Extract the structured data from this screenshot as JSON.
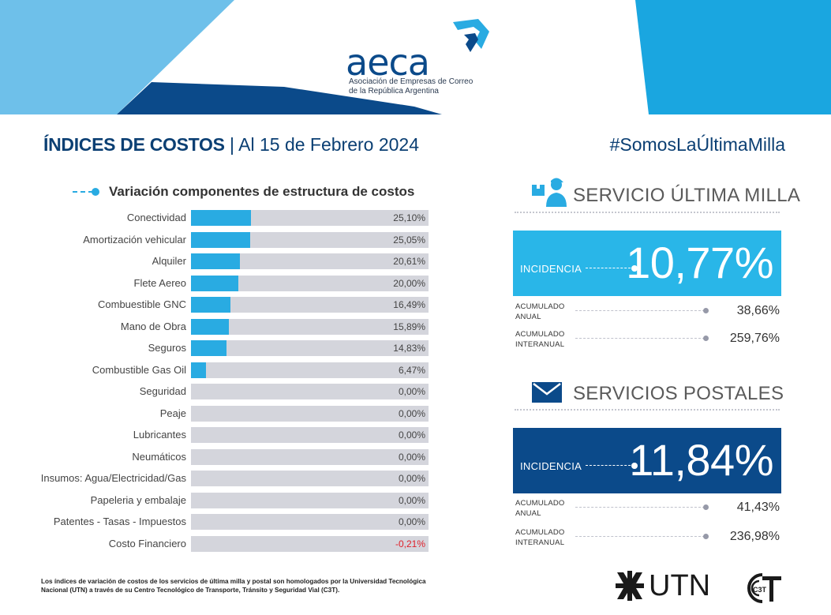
{
  "brand": {
    "name": "aeca",
    "subtitle_line1": "Asociación de Empresas de Correo",
    "subtitle_line2": "de la República Argentina"
  },
  "title": {
    "bold": "ÍNDICES DE COSTOS",
    "separator": "|",
    "date": "Al 15 de Febrero 2024"
  },
  "hashtag": "#SomosLaÚltimaMilla",
  "colors": {
    "accent_light": "#29abe2",
    "accent_dark": "#0b4a8a",
    "bar_track": "#d4d5dc",
    "negative": "#e0202a"
  },
  "chart_data": {
    "type": "bar",
    "orientation": "horizontal",
    "title": "Variación componentes de estructura de costos",
    "categories": [
      "Conectividad",
      "Amortización vehicular",
      "Alquiler",
      "Flete Aereo",
      "Combuestible GNC",
      "Mano de Obra",
      "Seguros",
      "Combustible Gas Oil",
      "Seguridad",
      "Peaje",
      "Lubricantes",
      "Neumáticos",
      "Insumos: Agua/Electricidad/Gas",
      "Papeleria y embalaje",
      "Patentes - Tasas - Impuestos",
      "Costo Financiero"
    ],
    "values": [
      25.1,
      25.05,
      20.61,
      20.0,
      16.49,
      15.89,
      14.83,
      6.47,
      0.0,
      0.0,
      0.0,
      0.0,
      0.0,
      0.0,
      0.0,
      -0.21
    ],
    "value_labels": [
      "25,10%",
      "25,05%",
      "20,61%",
      "20,00%",
      "16,49%",
      "15,89%",
      "14,83%",
      "6,47%",
      "0,00%",
      "0,00%",
      "0,00%",
      "0,00%",
      "0,00%",
      "0,00%",
      "0,00%",
      "-0,21%"
    ],
    "xlim": [
      0,
      100
    ],
    "grid": false
  },
  "servicio_ultima_milla": {
    "title": "SERVICIO ÚLTIMA MILLA",
    "icon": "delivery-person-icon",
    "incidencia_label": "INCIDENCIA",
    "incidencia_value": "10,77%",
    "acumulado_anual_label_1": "ACUMULADO",
    "acumulado_anual_label_2": "ANUAL",
    "acumulado_anual_value": "38,66%",
    "acumulado_interanual_label_1": "ACUMULADO",
    "acumulado_interanual_label_2": "INTERANUAL",
    "acumulado_interanual_value": "259,76%",
    "color": "#29b6e8"
  },
  "servicios_postales": {
    "title": "SERVICIOS POSTALES",
    "icon": "envelope-icon",
    "incidencia_label": "INCIDENCIA",
    "incidencia_value": "11,84%",
    "acumulado_anual_label_1": "ACUMULADO",
    "acumulado_anual_label_2": "ANUAL",
    "acumulado_anual_value": "41,43%",
    "acumulado_interanual_label_1": "ACUMULADO",
    "acumulado_interanual_label_2": "INTERANUAL",
    "acumulado_interanual_value": "236,98%",
    "color": "#0b4a8a"
  },
  "footnote": "Los índices de variación de costos de los servicios de última milla y postal son homologados por la Universidad Tecnológica Nacional (UTN) a través de su Centro Tecnológico de Transporte, Tránsito y Seguridad Vial (C3T).",
  "utn": {
    "text": "UTN",
    "icon": "utn-logo-icon"
  },
  "c3t": {
    "text": "C3T"
  }
}
